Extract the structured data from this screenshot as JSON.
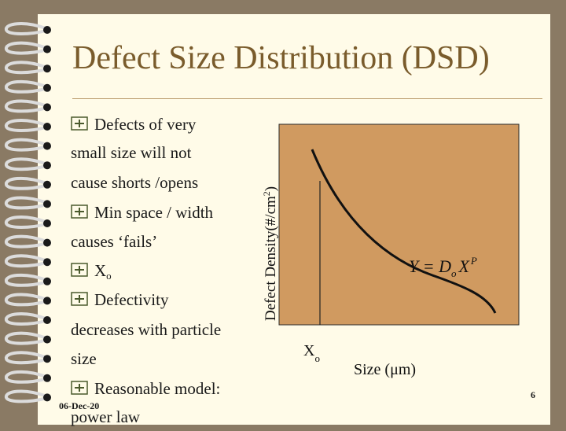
{
  "slide": {
    "title": "Defect Size Distribution (DSD)",
    "date": "06-Dec-20",
    "page_number": "6"
  },
  "bullets": {
    "line1": "Defects of very",
    "line2": "small size will not",
    "line3": "cause shorts /opens",
    "line4": "Min space / width",
    "line5": "causes ‘fails’",
    "line6_main": "X",
    "line6_sub": "o",
    "line7": "Defectivity",
    "line8": "decreases with particle",
    "line9": "size",
    "line10": "Reasonable model:",
    "line11": "power law"
  },
  "chart_data": {
    "type": "line",
    "xlabel": "Size (μm)",
    "ylabel_main": "Defect Density(#/cm",
    "ylabel_sup": "2",
    "ylabel_close": ")",
    "marker_label_main": "X",
    "marker_label_sub": "o",
    "equation": "Y = D",
    "equation_sub": "o",
    "equation_x": "X",
    "equation_sup": "P",
    "background_color": "#d09a60",
    "curve": "decreasing power law"
  },
  "colors": {
    "title": "#7a5c2c",
    "plot_bg": "#d09a60",
    "bullet_mark": "#4a5a2c"
  },
  "icons": {
    "bullet": "plus-box-icon",
    "binding": "spiral-binding-icon"
  }
}
